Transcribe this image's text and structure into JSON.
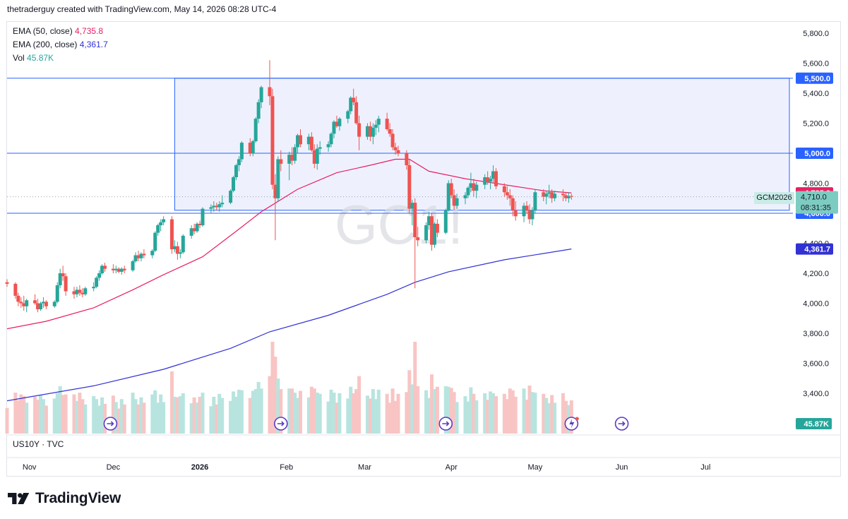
{
  "header": {
    "attribution": "thetraderguy created with TradingView.com, May 14, 2026 08:28 UTC-4"
  },
  "legend": {
    "ema50": {
      "label": "EMA (50, close)",
      "value": "4,735.8"
    },
    "ema200": {
      "label": "EMA (200, close)",
      "value": "4,361.7"
    },
    "vol": {
      "label": "Vol",
      "value": "45.87K"
    }
  },
  "symbol_tag": "GCM2026",
  "lower_pane_label": "US10Y · TVC",
  "watermark": "GC1!",
  "branding": "TradingView",
  "colors": {
    "up": "#26a69a",
    "down": "#ef5350",
    "ema50": "#e91e63",
    "ema200": "#3131d4",
    "level_line": "#2962ff",
    "box_fill": "#eef1fd",
    "vol_up": "#b8e4df",
    "vol_down": "#f8c5c4"
  },
  "chart_data": {
    "type": "candlestick",
    "symbol": "GC1!",
    "yaxis": {
      "ticks": [
        3400,
        3600,
        3800,
        4000,
        4200,
        4400,
        4600,
        4800,
        5000,
        5200,
        5400,
        5600,
        5800
      ],
      "tick_labels": [
        "3,400.0",
        "3,600.0",
        "3,800.0",
        "4,000.0",
        "4,200.0",
        "4,400.0",
        "4,600.0",
        "4,800.0",
        "5,000.0",
        "5,200.0",
        "5,400.0",
        "5,600.0",
        "5,800.0"
      ],
      "range": [
        3320,
        5900
      ]
    },
    "xaxis": {
      "labels": [
        "Nov",
        "Dec",
        "2026",
        "Feb",
        "Mar",
        "Apr",
        "May",
        "Jun",
        "Jul"
      ],
      "label_dates": [
        "2025-11-01",
        "2025-12-01",
        "2026-01-01",
        "2026-02-01",
        "2026-03-01",
        "2026-04-01",
        "2026-05-01",
        "2026-06-01",
        "2026-07-01"
      ],
      "range": [
        "2025-10-24",
        "2026-07-31"
      ]
    },
    "horizontal_levels": [
      {
        "value": 5500,
        "label": "5,500.0"
      },
      {
        "value": 5000,
        "label": "5,000.0"
      },
      {
        "value": 4600,
        "label": "4,600.0"
      }
    ],
    "range_box": {
      "start": "2025-12-23",
      "end": "2026-07-31",
      "top": 5500,
      "bottom": 4620
    },
    "price_labels": [
      {
        "value": 4735.8,
        "label": "4,735.8",
        "kind": "ema50"
      },
      {
        "value": 4710.0,
        "label": "4,710.0",
        "countdown": "08:31:35",
        "kind": "last"
      },
      {
        "value": 4361.7,
        "label": "4,361.7",
        "kind": "ema200"
      },
      {
        "label": "45.87K",
        "kind": "volume"
      }
    ],
    "candles": [
      [
        "2025-10-24",
        4140,
        4160,
        4110,
        4130
      ],
      [
        "2025-10-27",
        4130,
        4140,
        4030,
        4050
      ],
      [
        "2025-10-28",
        4050,
        4070,
        3980,
        4010
      ],
      [
        "2025-10-29",
        4010,
        4040,
        3970,
        4000
      ],
      [
        "2025-10-30",
        4000,
        4050,
        3950,
        3980
      ],
      [
        "2025-10-31",
        3980,
        4030,
        3940,
        4020
      ],
      [
        "2025-11-03",
        4020,
        4060,
        3990,
        4000
      ],
      [
        "2025-11-04",
        4000,
        4030,
        3940,
        3960
      ],
      [
        "2025-11-05",
        3960,
        4010,
        3950,
        4000
      ],
      [
        "2025-11-06",
        4000,
        4040,
        3970,
        4010
      ],
      [
        "2025-11-07",
        4010,
        4020,
        3960,
        3980
      ],
      [
        "2025-11-10",
        3980,
        4020,
        3970,
        4010
      ],
      [
        "2025-11-11",
        4010,
        4140,
        4000,
        4120
      ],
      [
        "2025-11-12",
        4120,
        4230,
        4100,
        4200
      ],
      [
        "2025-11-13",
        4200,
        4250,
        4150,
        4180
      ],
      [
        "2025-11-14",
        4180,
        4200,
        4050,
        4080
      ],
      [
        "2025-11-17",
        4080,
        4110,
        4030,
        4060
      ],
      [
        "2025-11-18",
        4060,
        4110,
        4040,
        4090
      ],
      [
        "2025-11-19",
        4090,
        4120,
        4050,
        4070
      ],
      [
        "2025-11-20",
        4070,
        4100,
        4040,
        4060
      ],
      [
        "2025-11-21",
        4060,
        4110,
        4050,
        4100
      ],
      [
        "2025-11-24",
        4100,
        4140,
        4080,
        4110
      ],
      [
        "2025-11-25",
        4110,
        4180,
        4100,
        4170
      ],
      [
        "2025-11-26",
        4170,
        4220,
        4150,
        4200
      ],
      [
        "2025-11-27",
        4200,
        4260,
        4190,
        4250
      ],
      [
        "2025-11-28",
        4250,
        4270,
        4210,
        4230
      ],
      [
        "2025-12-01",
        4230,
        4260,
        4200,
        4220
      ],
      [
        "2025-12-02",
        4220,
        4250,
        4200,
        4230
      ],
      [
        "2025-12-03",
        4230,
        4240,
        4200,
        4210
      ],
      [
        "2025-12-04",
        4210,
        4240,
        4190,
        4230
      ],
      [
        "2025-12-05",
        4230,
        4250,
        4200,
        4220
      ],
      [
        "2025-12-08",
        4220,
        4290,
        4210,
        4280
      ],
      [
        "2025-12-09",
        4280,
        4340,
        4270,
        4320
      ],
      [
        "2025-12-10",
        4320,
        4350,
        4280,
        4300
      ],
      [
        "2025-12-11",
        4300,
        4340,
        4280,
        4330
      ],
      [
        "2025-12-12",
        4330,
        4360,
        4300,
        4320
      ],
      [
        "2025-12-15",
        4320,
        4360,
        4300,
        4350
      ],
      [
        "2025-12-16",
        4350,
        4480,
        4340,
        4470
      ],
      [
        "2025-12-17",
        4470,
        4530,
        4450,
        4520
      ],
      [
        "2025-12-18",
        4520,
        4560,
        4480,
        4540
      ],
      [
        "2025-12-19",
        4540,
        4580,
        4520,
        4560
      ],
      [
        "2025-12-22",
        4560,
        4580,
        4330,
        4360
      ],
      [
        "2025-12-23",
        4360,
        4420,
        4340,
        4380
      ],
      [
        "2025-12-24",
        4380,
        4410,
        4290,
        4330
      ],
      [
        "2025-12-25",
        4330,
        4360,
        4300,
        4340
      ],
      [
        "2025-12-26",
        4340,
        4460,
        4330,
        4450
      ],
      [
        "2025-12-29",
        4450,
        4520,
        4430,
        4500
      ],
      [
        "2025-12-30",
        4500,
        4530,
        4460,
        4480
      ],
      [
        "2025-12-31",
        4480,
        4540,
        4470,
        4530
      ],
      [
        "2026-01-01",
        4530,
        4550,
        4500,
        4520
      ],
      [
        "2026-01-02",
        4520,
        4640,
        4510,
        4630
      ],
      [
        "2026-01-05",
        4630,
        4660,
        4600,
        4640
      ],
      [
        "2026-01-06",
        4640,
        4680,
        4610,
        4650
      ],
      [
        "2026-01-07",
        4650,
        4670,
        4620,
        4640
      ],
      [
        "2026-01-08",
        4640,
        4680,
        4610,
        4660
      ],
      [
        "2026-01-09",
        4660,
        4720,
        4640,
        4670
      ],
      [
        "2026-01-12",
        4670,
        4760,
        4660,
        4750
      ],
      [
        "2026-01-13",
        4750,
        4850,
        4740,
        4840
      ],
      [
        "2026-01-14",
        4840,
        4930,
        4820,
        4920
      ],
      [
        "2026-01-15",
        4920,
        4980,
        4880,
        4960
      ],
      [
        "2026-01-16",
        4960,
        5080,
        4940,
        5070
      ],
      [
        "2026-01-19",
        5070,
        5100,
        4980,
        5000
      ],
      [
        "2026-01-20",
        5000,
        5090,
        4980,
        5080
      ],
      [
        "2026-01-21",
        5080,
        5240,
        5070,
        5230
      ],
      [
        "2026-01-22",
        5230,
        5360,
        5200,
        5340
      ],
      [
        "2026-01-23",
        5340,
        5450,
        5300,
        5440
      ],
      [
        "2026-01-26",
        5440,
        5620,
        5320,
        5380
      ],
      [
        "2026-01-27",
        5380,
        5430,
        4760,
        4790
      ],
      [
        "2026-01-28",
        4790,
        4860,
        4420,
        4700
      ],
      [
        "2026-01-29",
        4700,
        4980,
        4680,
        4960
      ],
      [
        "2026-01-30",
        4960,
        5020,
        4880,
        4930
      ],
      [
        "2026-02-02",
        4930,
        5010,
        4820,
        4990
      ],
      [
        "2026-02-03",
        4990,
        5040,
        4920,
        4950
      ],
      [
        "2026-02-04",
        4950,
        5060,
        4930,
        5040
      ],
      [
        "2026-02-05",
        5040,
        5130,
        5000,
        5120
      ],
      [
        "2026-02-06",
        5120,
        5160,
        5040,
        5060
      ],
      [
        "2026-02-09",
        5060,
        5130,
        5020,
        5110
      ],
      [
        "2026-02-10",
        5110,
        5140,
        5010,
        5020
      ],
      [
        "2026-02-11",
        5020,
        5060,
        4900,
        4930
      ],
      [
        "2026-02-12",
        4930,
        5060,
        4890,
        5030
      ],
      [
        "2026-02-13",
        5030,
        5080,
        4990,
        5040
      ],
      [
        "2026-02-16",
        5040,
        5080,
        5010,
        5060
      ],
      [
        "2026-02-17",
        5060,
        5140,
        5040,
        5130
      ],
      [
        "2026-02-18",
        5130,
        5220,
        5100,
        5210
      ],
      [
        "2026-02-19",
        5210,
        5250,
        5170,
        5180
      ],
      [
        "2026-02-20",
        5180,
        5240,
        5150,
        5230
      ],
      [
        "2026-02-23",
        5230,
        5290,
        5200,
        5280
      ],
      [
        "2026-02-24",
        5280,
        5380,
        5260,
        5370
      ],
      [
        "2026-02-25",
        5370,
        5430,
        5320,
        5340
      ],
      [
        "2026-02-26",
        5340,
        5380,
        5190,
        5200
      ],
      [
        "2026-02-27",
        5200,
        5250,
        5020,
        5110
      ],
      [
        "2026-03-02",
        5110,
        5200,
        5090,
        5180
      ],
      [
        "2026-03-03",
        5180,
        5210,
        5080,
        5110
      ],
      [
        "2026-03-04",
        5110,
        5200,
        5060,
        5170
      ],
      [
        "2026-03-05",
        5170,
        5220,
        5120,
        5190
      ],
      [
        "2026-03-06",
        5190,
        5250,
        5140,
        5230
      ],
      [
        "2026-03-09",
        5230,
        5270,
        5150,
        5160
      ],
      [
        "2026-03-10",
        5160,
        5200,
        5110,
        5130
      ],
      [
        "2026-03-11",
        5130,
        5160,
        5020,
        5040
      ],
      [
        "2026-03-12",
        5040,
        5070,
        4990,
        5020
      ],
      [
        "2026-03-13",
        5020,
        5050,
        4980,
        5000
      ],
      [
        "2026-03-16",
        5000,
        5020,
        4890,
        4920
      ],
      [
        "2026-03-17",
        4920,
        4960,
        4600,
        4630
      ],
      [
        "2026-03-18",
        4630,
        4690,
        4520,
        4670
      ],
      [
        "2026-03-19",
        4670,
        4700,
        4100,
        4440
      ],
      [
        "2026-03-20",
        4440,
        4510,
        4380,
        4420
      ],
      [
        "2026-03-23",
        4420,
        4540,
        4400,
        4520
      ],
      [
        "2026-03-24",
        4520,
        4610,
        4490,
        4580
      ],
      [
        "2026-03-25",
        4580,
        4600,
        4350,
        4390
      ],
      [
        "2026-03-26",
        4390,
        4540,
        4370,
        4530
      ],
      [
        "2026-03-27",
        4530,
        4560,
        4440,
        4470
      ],
      [
        "2026-03-30",
        4470,
        4630,
        4460,
        4620
      ],
      [
        "2026-03-31",
        4620,
        4820,
        4610,
        4800
      ],
      [
        "2026-04-01",
        4800,
        4830,
        4700,
        4720
      ],
      [
        "2026-04-02",
        4720,
        4760,
        4620,
        4650
      ],
      [
        "2026-04-03",
        4650,
        4730,
        4630,
        4700
      ],
      [
        "2026-04-06",
        4700,
        4740,
        4660,
        4720
      ],
      [
        "2026-04-07",
        4720,
        4780,
        4700,
        4770
      ],
      [
        "2026-04-08",
        4770,
        4870,
        4740,
        4800
      ],
      [
        "2026-04-09",
        4800,
        4830,
        4710,
        4750
      ],
      [
        "2026-04-10",
        4750,
        4810,
        4700,
        4790
      ],
      [
        "2026-04-13",
        4790,
        4860,
        4760,
        4840
      ],
      [
        "2026-04-14",
        4840,
        4880,
        4790,
        4810
      ],
      [
        "2026-04-15",
        4810,
        4850,
        4760,
        4830
      ],
      [
        "2026-04-16",
        4830,
        4920,
        4800,
        4880
      ],
      [
        "2026-04-17",
        4880,
        4900,
        4760,
        4780
      ],
      [
        "2026-04-20",
        4780,
        4800,
        4710,
        4740
      ],
      [
        "2026-04-21",
        4740,
        4780,
        4690,
        4720
      ],
      [
        "2026-04-22",
        4720,
        4760,
        4650,
        4700
      ],
      [
        "2026-04-23",
        4700,
        4720,
        4580,
        4620
      ],
      [
        "2026-04-24",
        4620,
        4680,
        4550,
        4580
      ],
      [
        "2026-04-27",
        4580,
        4670,
        4540,
        4650
      ],
      [
        "2026-04-28",
        4650,
        4680,
        4600,
        4620
      ],
      [
        "2026-04-29",
        4620,
        4660,
        4530,
        4560
      ],
      [
        "2026-04-30",
        4560,
        4640,
        4520,
        4620
      ],
      [
        "2026-05-01",
        4620,
        4760,
        4600,
        4740
      ],
      [
        "2026-05-04",
        4740,
        4760,
        4680,
        4710
      ],
      [
        "2026-05-05",
        4710,
        4750,
        4660,
        4730
      ],
      [
        "2026-05-06",
        4730,
        4790,
        4700,
        4740
      ],
      [
        "2026-05-07",
        4740,
        4760,
        4670,
        4700
      ],
      [
        "2026-05-08",
        4700,
        4750,
        4680,
        4730
      ],
      [
        "2026-05-11",
        4730,
        4760,
        4680,
        4720
      ],
      [
        "2026-05-12",
        4720,
        4740,
        4680,
        4700
      ],
      [
        "2026-05-13",
        4700,
        4740,
        4670,
        4715
      ],
      [
        "2026-05-14",
        4715,
        4730,
        4690,
        4710
      ]
    ],
    "ema50": [
      [
        "2025-10-24",
        3830
      ],
      [
        "2025-11-07",
        3880
      ],
      [
        "2025-11-24",
        3970
      ],
      [
        "2025-12-08",
        4090
      ],
      [
        "2025-12-19",
        4190
      ],
      [
        "2026-01-02",
        4310
      ],
      [
        "2026-01-14",
        4480
      ],
      [
        "2026-01-23",
        4610
      ],
      [
        "2026-02-05",
        4760
      ],
      [
        "2026-02-19",
        4870
      ],
      [
        "2026-03-03",
        4920
      ],
      [
        "2026-03-12",
        4960
      ],
      [
        "2026-03-17",
        4960
      ],
      [
        "2026-03-24",
        4880
      ],
      [
        "2026-04-06",
        4830
      ],
      [
        "2026-04-20",
        4790
      ],
      [
        "2026-05-04",
        4750
      ],
      [
        "2026-05-14",
        4735.8
      ]
    ],
    "ema200": [
      [
        "2025-10-24",
        3350
      ],
      [
        "2025-11-24",
        3450
      ],
      [
        "2025-12-19",
        3560
      ],
      [
        "2026-01-12",
        3700
      ],
      [
        "2026-01-26",
        3810
      ],
      [
        "2026-02-16",
        3920
      ],
      [
        "2026-03-09",
        4060
      ],
      [
        "2026-03-19",
        4140
      ],
      [
        "2026-03-31",
        4210
      ],
      [
        "2026-04-20",
        4290
      ],
      [
        "2026-05-14",
        4361.7
      ]
    ],
    "volume_scale_max": 140000
  }
}
